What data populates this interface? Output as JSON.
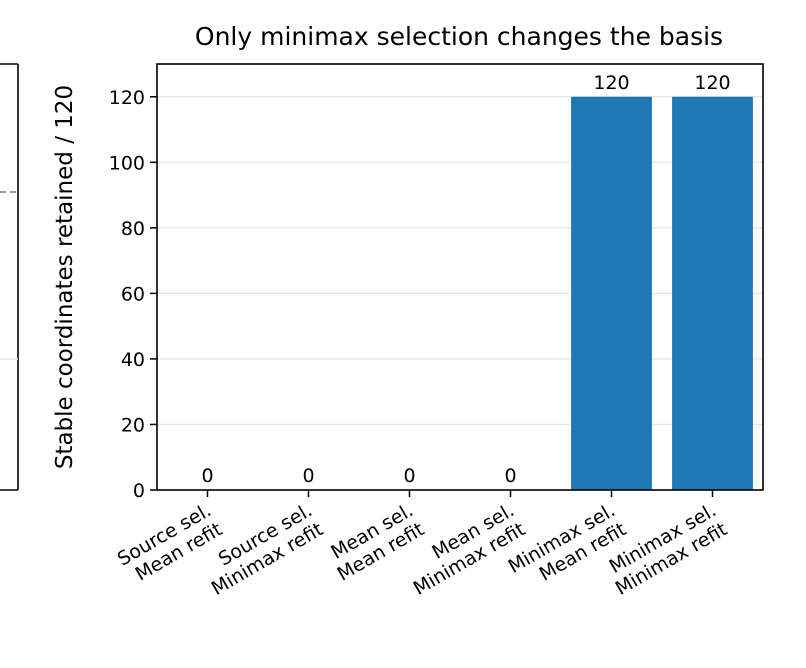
{
  "chart_data": {
    "type": "bar",
    "title": "Only minimax selection changes the basis",
    "ylabel": "Stable coordinates retained / 120",
    "xlabel": "",
    "categories": [
      [
        "Source sel.",
        "Mean refit"
      ],
      [
        "Source sel.",
        "Minimax refit"
      ],
      [
        "Mean sel.",
        "Mean refit"
      ],
      [
        "Mean sel.",
        "Minimax refit"
      ],
      [
        "Minimax sel.",
        "Mean refit"
      ],
      [
        "Minimax sel.",
        "Minimax refit"
      ]
    ],
    "values": [
      0,
      0,
      0,
      0,
      120,
      120
    ],
    "data_labels": [
      "0",
      "0",
      "0",
      "0",
      "120",
      "120"
    ],
    "ylim": [
      0,
      130
    ],
    "yticks": [
      0,
      20,
      40,
      60,
      80,
      100,
      120
    ],
    "ytick_labels": [
      "0",
      "20",
      "40",
      "60",
      "80",
      "100",
      "120"
    ],
    "grid": "y",
    "bar_color": "#1f77b4"
  }
}
